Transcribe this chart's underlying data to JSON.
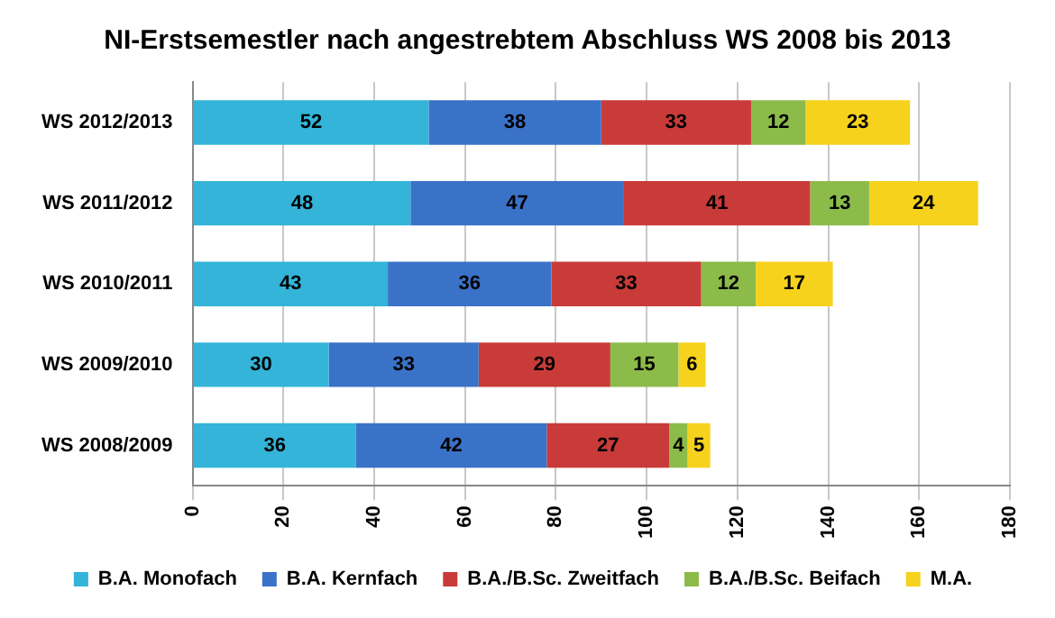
{
  "chart_data": {
    "type": "bar",
    "orientation": "horizontal",
    "stacked": true,
    "title": "NI-Erstsemestler nach angestrebtem Abschluss WS 2008 bis 2013",
    "categories": [
      "WS 2012/2013",
      "WS 2011/2012",
      "WS 2010/2011",
      "WS 2009/2010",
      "WS 2008/2009"
    ],
    "series": [
      {
        "name": "B.A. Monofach",
        "color": "#33b4d8",
        "values": [
          52,
          48,
          43,
          30,
          36
        ]
      },
      {
        "name": "B.A. Kernfach",
        "color": "#3a72c8",
        "values": [
          38,
          47,
          36,
          33,
          42
        ]
      },
      {
        "name": "B.A./B.Sc. Zweitfach",
        "color": "#c83b38",
        "values": [
          33,
          41,
          33,
          29,
          27
        ]
      },
      {
        "name": "B.A./B.Sc. Beifach",
        "color": "#8cbb4a",
        "values": [
          12,
          13,
          12,
          15,
          4
        ]
      },
      {
        "name": "M.A.",
        "color": "#f6d21c",
        "values": [
          23,
          24,
          17,
          6,
          5
        ]
      }
    ],
    "xlim": [
      0,
      180
    ],
    "xticks": [
      0,
      20,
      40,
      60,
      80,
      100,
      120,
      140,
      160,
      180
    ],
    "grid": "x",
    "legend": "bottom",
    "data_labels": true
  }
}
